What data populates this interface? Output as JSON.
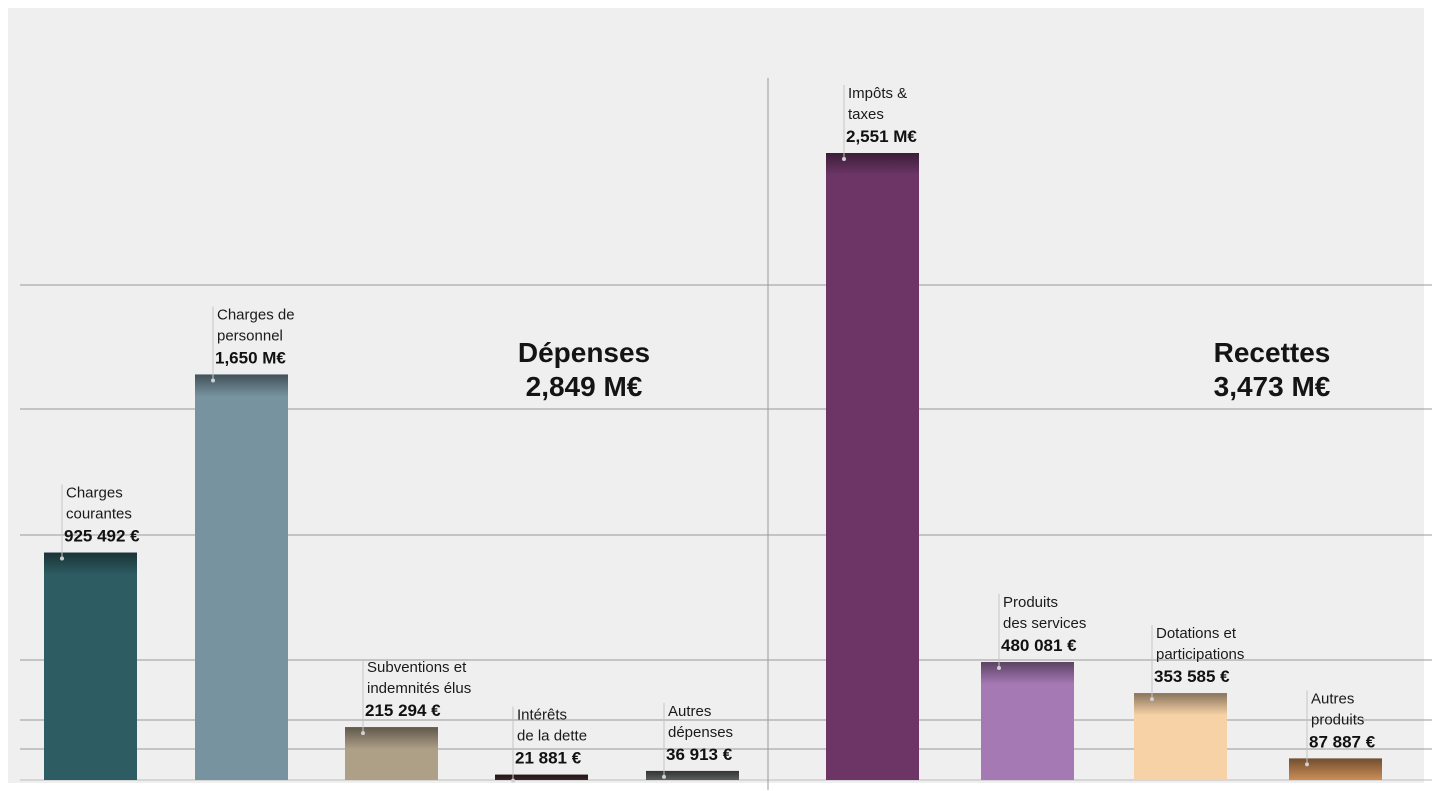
{
  "chart_data": {
    "type": "bar",
    "unit": "€",
    "grid": true,
    "groups": [
      {
        "name": "Dépenses",
        "total_label": "2,849 M€",
        "bars": [
          {
            "label": [
              "Charges",
              "courantes"
            ],
            "value_label": "925 492 €",
            "value": 925492,
            "color": "#2d5c62"
          },
          {
            "label": [
              "Charges de",
              "personnel"
            ],
            "value_label": "1,650 M€",
            "value": 1650000,
            "color": "#7793a0"
          },
          {
            "label": [
              "Subventions et",
              "indemnités élus"
            ],
            "value_label": "215 294 €",
            "value": 215294,
            "color": "#ae9f87"
          },
          {
            "label": [
              "Intérêts",
              "de la dette"
            ],
            "value_label": "21 881 €",
            "value": 21881,
            "color": "#3b2628"
          },
          {
            "label": [
              "Autres",
              "dépenses"
            ],
            "value_label": "36 913 €",
            "value": 36913,
            "color": "#5a5f5d"
          }
        ]
      },
      {
        "name": "Recettes",
        "total_label": "3,473 M€",
        "bars": [
          {
            "label": [
              "Impôts &",
              "taxes"
            ],
            "value_label": "2,551 M€",
            "value": 2551000,
            "color": "#6c3566"
          },
          {
            "label": [
              "Produits",
              "des services"
            ],
            "value_label": "480 081 €",
            "value": 480081,
            "color": "#a579b4"
          },
          {
            "label": [
              "Dotations et",
              "participations"
            ],
            "value_label": "353 585 €",
            "value": 353585,
            "color": "#f6d2a6"
          },
          {
            "label": [
              "Autres",
              "produits"
            ],
            "value_label": "87 887 €",
            "value": 87887,
            "color": "#cc8e57"
          }
        ]
      }
    ]
  }
}
